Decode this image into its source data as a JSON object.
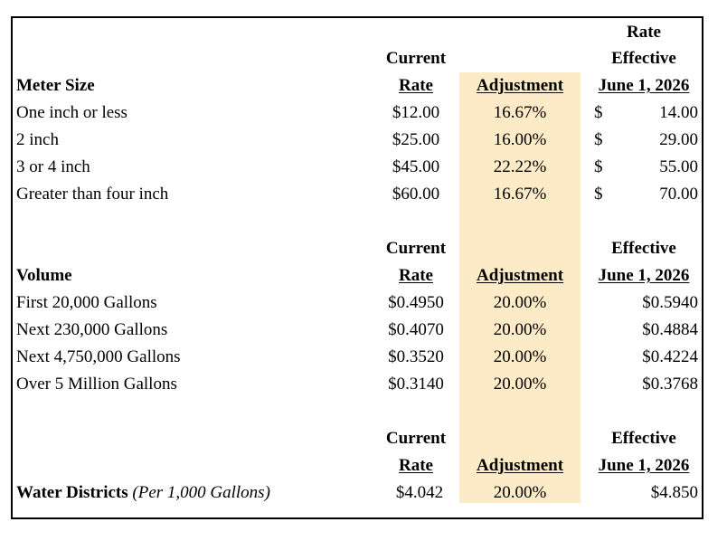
{
  "meter": {
    "header": {
      "label": "Meter Size",
      "current_1": "Current",
      "current_2": "Rate",
      "adjustment": "Adjustment",
      "effective_0": "Rate",
      "effective_1": "Effective",
      "effective_2": "June 1, 2026"
    },
    "rows": [
      {
        "label": "One inch or less",
        "current": "$12.00",
        "adjustment": "16.67%",
        "symbol": "$",
        "effective": "14.00"
      },
      {
        "label": "2 inch",
        "current": "$25.00",
        "adjustment": "16.00%",
        "symbol": "$",
        "effective": "29.00"
      },
      {
        "label": "3 or 4 inch",
        "current": "$45.00",
        "adjustment": "22.22%",
        "symbol": "$",
        "effective": "55.00"
      },
      {
        "label": "Greater than four inch",
        "current": "$60.00",
        "adjustment": "16.67%",
        "symbol": "$",
        "effective": "70.00"
      }
    ]
  },
  "volume": {
    "header": {
      "label": "Volume",
      "current_1": "Current",
      "current_2": "Rate",
      "adjustment": "Adjustment",
      "effective_1": "Effective",
      "effective_2": "June 1, 2026"
    },
    "rows": [
      {
        "label": "First 20,000 Gallons",
        "current": "$0.4950",
        "adjustment": "20.00%",
        "effective": "$0.5940"
      },
      {
        "label": "Next 230,000 Gallons",
        "current": "$0.4070",
        "adjustment": "20.00%",
        "effective": "$0.4884"
      },
      {
        "label": "Next 4,750,000 Gallons",
        "current": "$0.3520",
        "adjustment": "20.00%",
        "effective": "$0.4224"
      },
      {
        "label": "Over 5 Million Gallons",
        "current": "$0.3140",
        "adjustment": "20.00%",
        "effective": "$0.3768"
      }
    ]
  },
  "districts": {
    "header": {
      "current_1": "Current",
      "current_2": "Rate",
      "adjustment": "Adjustment",
      "effective_1": "Effective",
      "effective_2": "June 1, 2026"
    },
    "row": {
      "label": "Water Districts",
      "label_note": "(Per 1,000 Gallons)",
      "current": "$4.042",
      "adjustment": "20.00%",
      "effective": "$4.850"
    }
  },
  "colors": {
    "adjustment_highlight": "#fcebc6",
    "border": "#000000"
  }
}
